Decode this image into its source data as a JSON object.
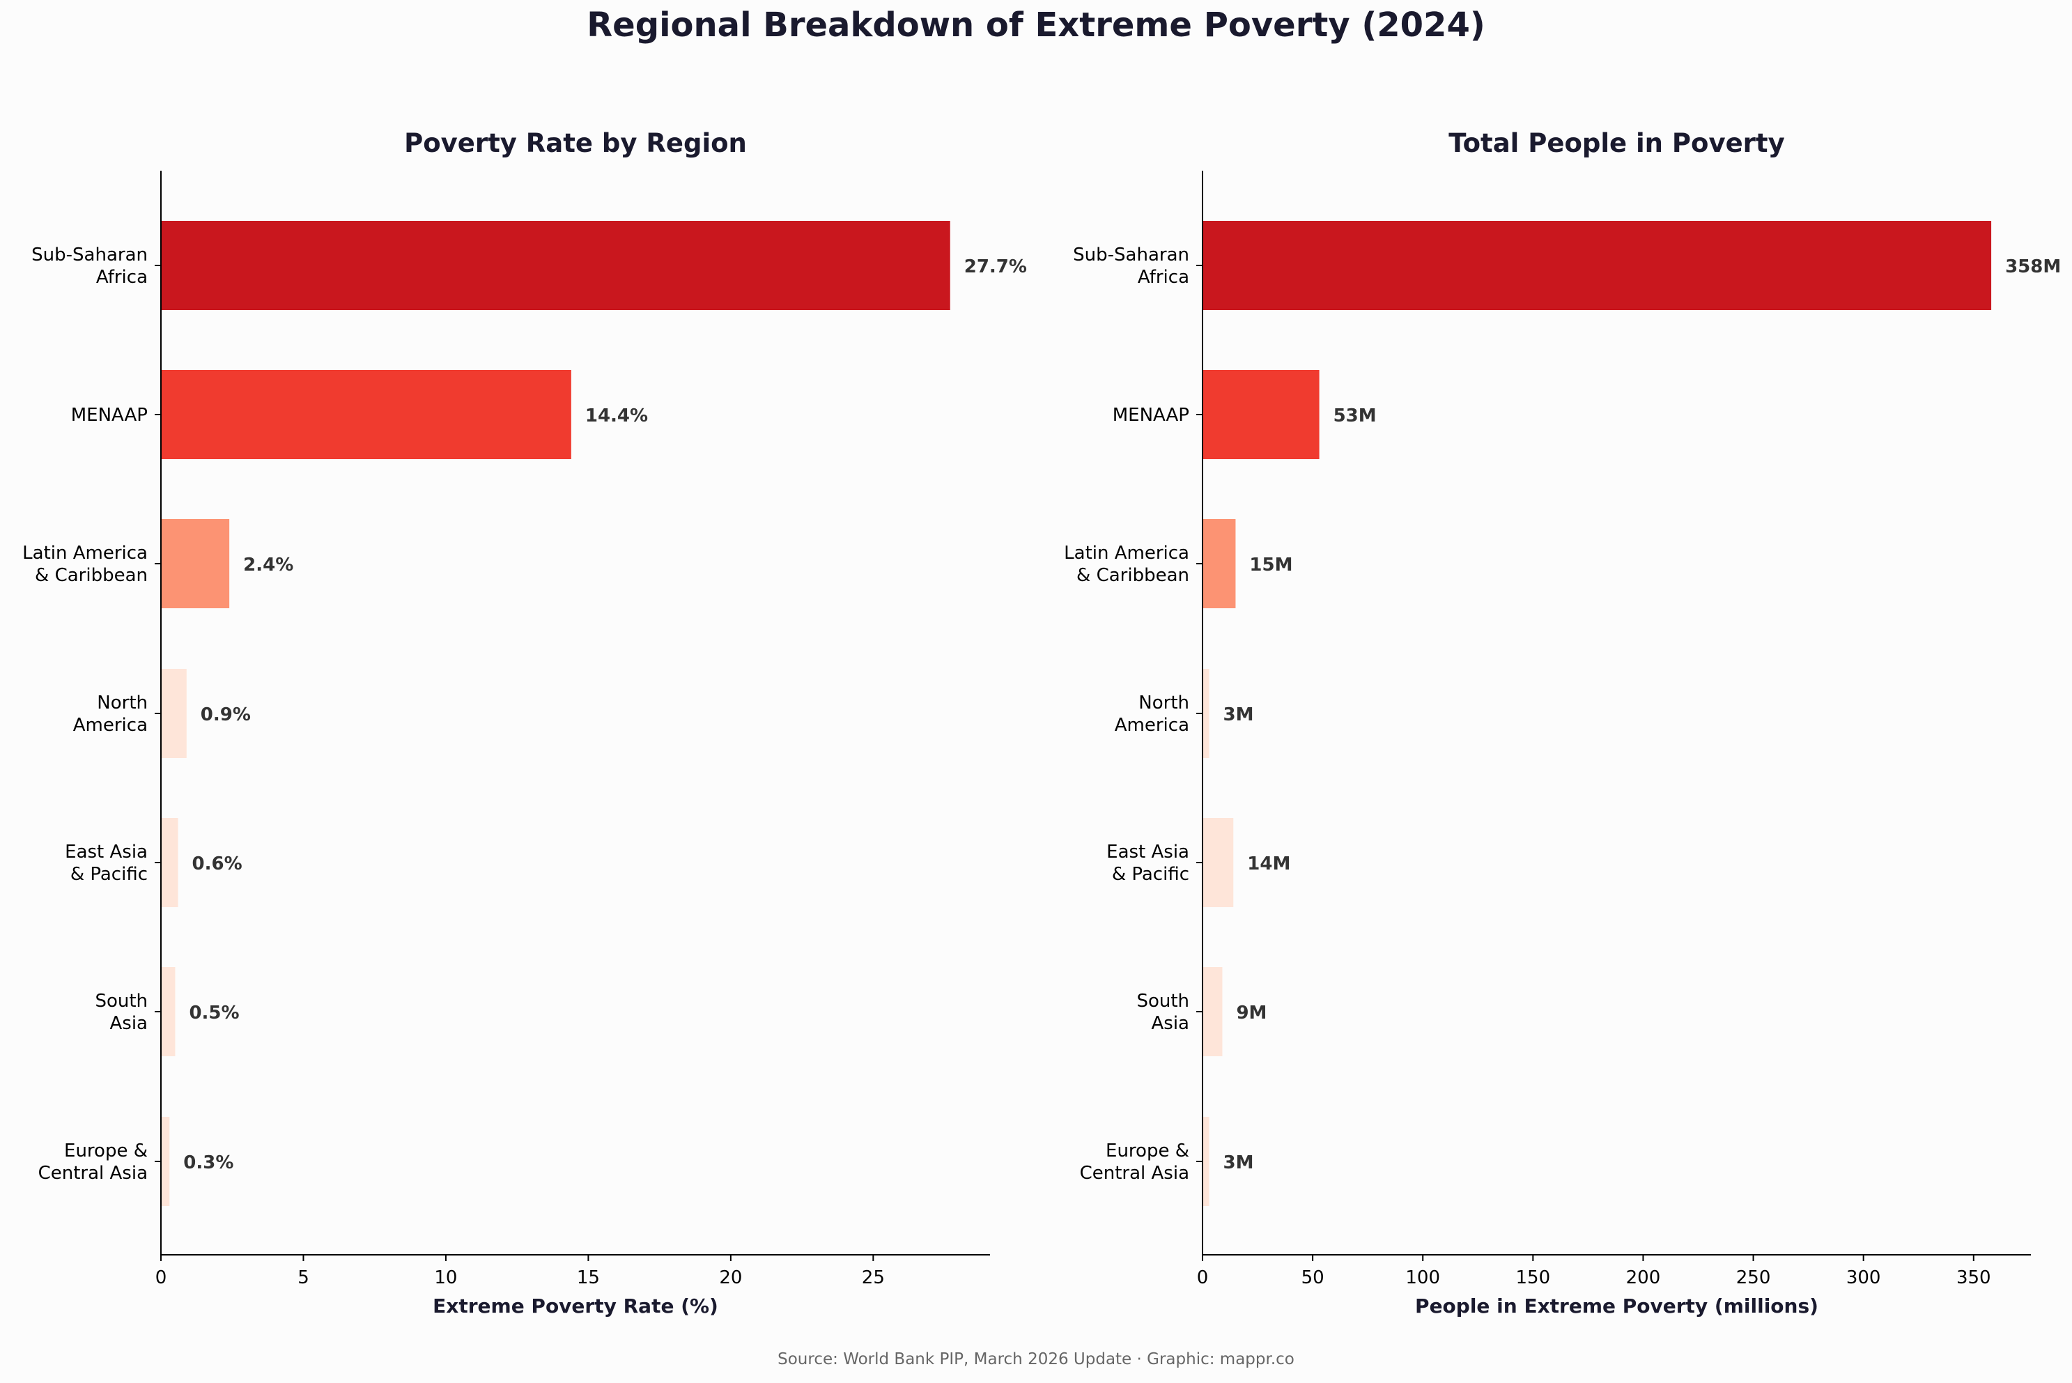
{
  "title": "Regional Breakdown of Extreme Poverty (2024)",
  "source": "Source: World Bank PIP, March 2026 Update · Graphic: mappr.co",
  "colors": {
    "background": "#fcfcfc",
    "text": "#1a1a2e",
    "label_text": "#333333",
    "source_text": "#666666"
  },
  "chart_data": [
    {
      "type": "bar",
      "orientation": "horizontal",
      "title": "Poverty Rate by Region",
      "xlabel": "Extreme Poverty Rate (%)",
      "ylabel": "",
      "categories": [
        [
          "Sub-Saharan",
          "Africa"
        ],
        [
          "MENAAP"
        ],
        [
          "Latin America",
          "& Caribbean"
        ],
        [
          "North",
          "America"
        ],
        [
          "East Asia",
          "& Pacific"
        ],
        [
          "South",
          "Asia"
        ],
        [
          "Europe &",
          "Central Asia"
        ]
      ],
      "values": [
        27.7,
        14.4,
        2.4,
        0.9,
        0.6,
        0.5,
        0.3
      ],
      "value_labels": [
        "27.7%",
        "14.4%",
        "2.4%",
        "0.9%",
        "0.6%",
        "0.5%",
        "0.3%"
      ],
      "bar_colors": [
        "#c9171e",
        "#f03b2f",
        "#fc9373",
        "#fee5d9",
        "#fee5d9",
        "#fee5d9",
        "#fee5d9"
      ],
      "xlim": [
        0,
        29.1
      ],
      "xticks": [
        0,
        5,
        10,
        15,
        20,
        25
      ],
      "grid": false,
      "legend": "none"
    },
    {
      "type": "bar",
      "orientation": "horizontal",
      "title": "Total People in Poverty",
      "xlabel": "People in Extreme Poverty (millions)",
      "ylabel": "",
      "categories": [
        [
          "Sub-Saharan",
          "Africa"
        ],
        [
          "MENAAP"
        ],
        [
          "Latin America",
          "& Caribbean"
        ],
        [
          "North",
          "America"
        ],
        [
          "East Asia",
          "& Pacific"
        ],
        [
          "South",
          "Asia"
        ],
        [
          "Europe &",
          "Central Asia"
        ]
      ],
      "values": [
        358,
        53,
        15,
        3,
        14,
        9,
        3
      ],
      "value_labels": [
        "358M",
        "53M",
        "15M",
        "3M",
        "14M",
        "9M",
        "3M"
      ],
      "bar_colors": [
        "#c9171e",
        "#f03b2f",
        "#fc9373",
        "#fee5d9",
        "#fee5d9",
        "#fee5d9",
        "#fee5d9"
      ],
      "xlim": [
        0,
        376
      ],
      "xticks": [
        0,
        50,
        100,
        150,
        200,
        250,
        300,
        350
      ],
      "grid": false,
      "legend": "none"
    }
  ]
}
